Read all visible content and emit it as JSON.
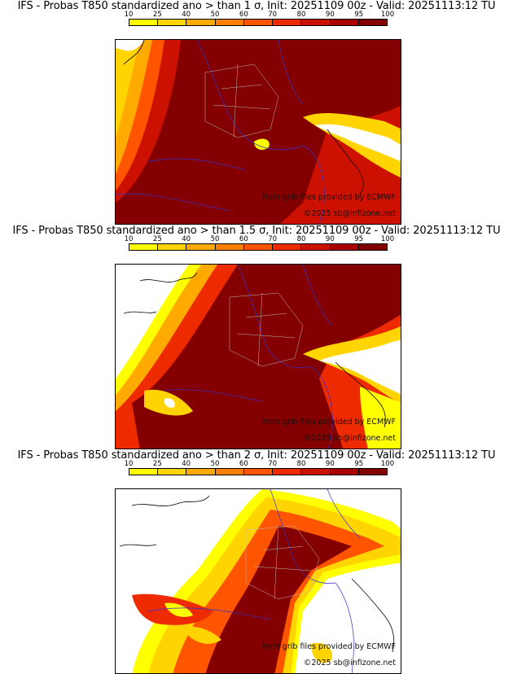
{
  "colorbar": {
    "ticks": [
      "10",
      "25",
      "40",
      "50",
      "60",
      "70",
      "80",
      "90",
      "95",
      "100"
    ],
    "colors": [
      "#ffff00",
      "#ffd400",
      "#ffaa00",
      "#ff8000",
      "#ff5500",
      "#ee2a00",
      "#cc1100",
      "#a80000",
      "#840000"
    ]
  },
  "panels": [
    {
      "title": "IFS - Probas T850  standardized ano > than 1 σ, Init: 20251109 00z - Valid: 20251113:12 TU",
      "credit_source": "from grib files provided by ECMWF",
      "credit_copyright": "©2025 sb@infizone.net"
    },
    {
      "title": "IFS - Probas T850  standardized ano > than 1.5 σ, Init: 20251109 00z - Valid: 20251113:12 TU",
      "credit_source": "from grib files provided by ECMWF",
      "credit_copyright": "©2025 sb@infizone.net"
    },
    {
      "title": "IFS - Probas T850  standardized ano > than 2 σ, Init: 20251109 00z - Valid: 20251113:12 TU",
      "credit_source": "from grib files provided by ECMWF",
      "credit_copyright": "©2025 sb@infizone.net"
    }
  ]
}
